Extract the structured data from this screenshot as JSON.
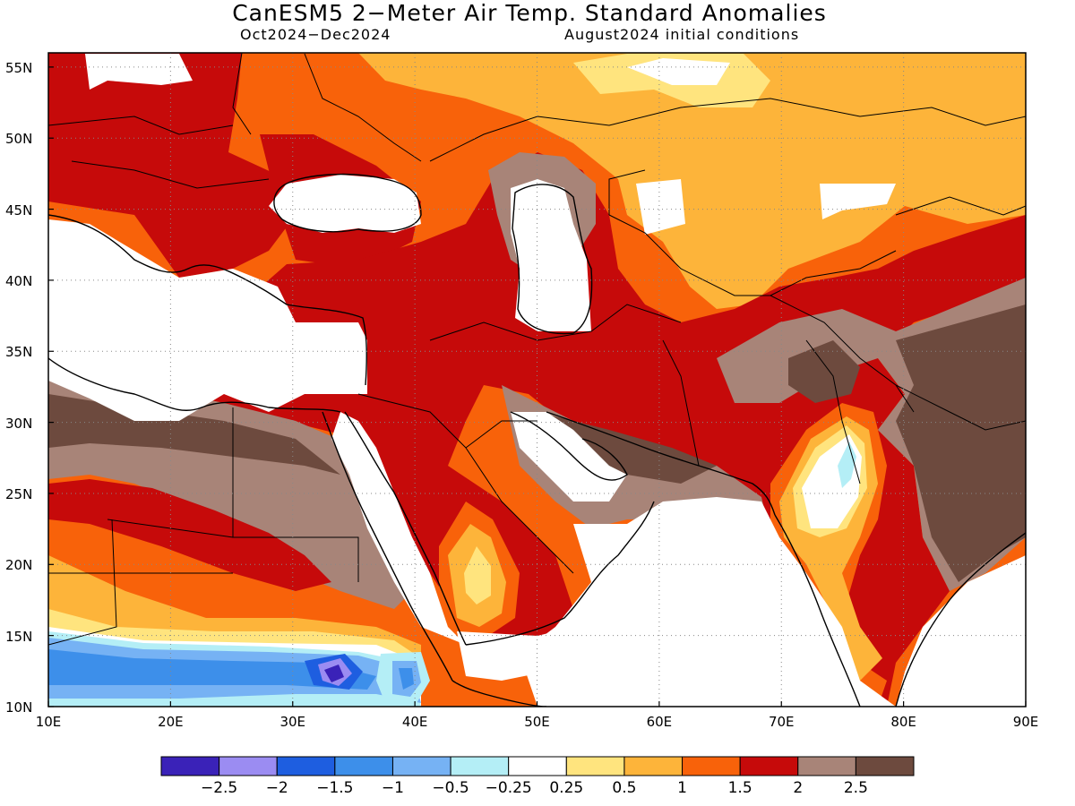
{
  "title": "CanESM5 2−Meter Air Temp. Standard Anomalies",
  "subtitle_left": "Oct2024−Dec2024",
  "subtitle_right": "August2024 initial conditions",
  "map": {
    "lon_range": [
      10,
      90
    ],
    "lat_range": [
      10,
      56
    ],
    "lon_ticks": [
      "10E",
      "20E",
      "30E",
      "40E",
      "50E",
      "60E",
      "70E",
      "80E",
      "90E"
    ],
    "lat_ticks": [
      "10N",
      "15N",
      "20N",
      "25N",
      "30N",
      "35N",
      "40N",
      "45N",
      "50N",
      "55N"
    ],
    "grid": true
  },
  "colorbar": {
    "colors": [
      "#3a22b8",
      "#9b8cf2",
      "#1e5ee0",
      "#3d8fea",
      "#76b2f4",
      "#b4eef6",
      "#ffffff",
      "#ffe47e",
      "#fdb43a",
      "#f8620a",
      "#c60a0a",
      "#a88478",
      "#6d4a3e"
    ],
    "labels": [
      "−2.5",
      "−2",
      "−1.5",
      "−1",
      "−0.5",
      "−0.25",
      "0.25",
      "0.5",
      "1",
      "1.5",
      "2",
      "2.5"
    ]
  },
  "colors": {
    "near_zero": "#ffffff",
    "pos_0_25": "#ffe47e",
    "pos_0_5": "#fdb43a",
    "pos_1": "#f8620a",
    "pos_1_5": "#c60a0a",
    "pos_2": "#a88478",
    "pos_2_5": "#6d4a3e",
    "neg_0_25": "#b4eef6",
    "neg_0_5": "#76b2f4",
    "neg_1": "#3d8fea",
    "neg_1_5": "#1e5ee0",
    "neg_2": "#9b8cf2",
    "neg_2_5": "#3a22b8"
  }
}
